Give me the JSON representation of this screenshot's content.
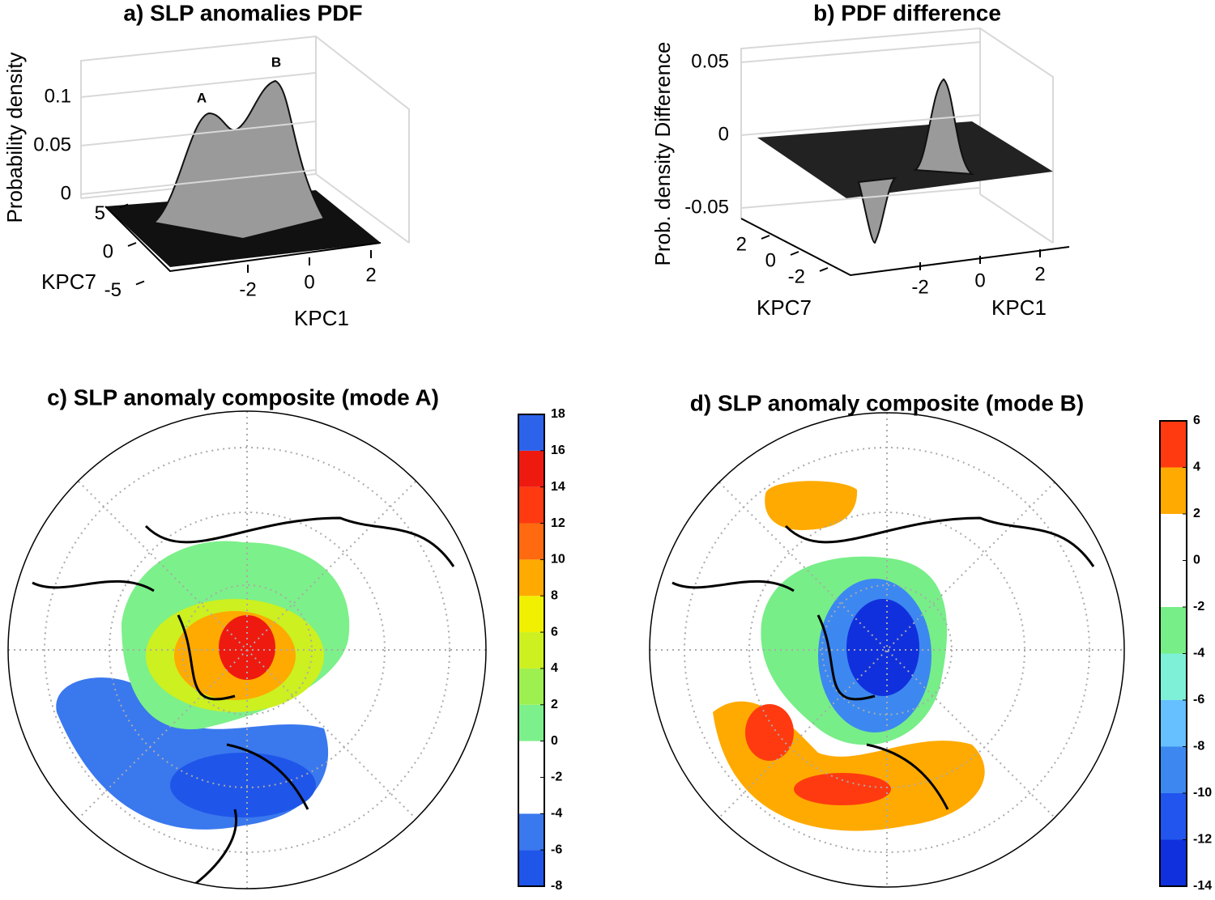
{
  "chart_data": [
    {
      "type": "surface",
      "title": "a) SLP anomalies PDF",
      "zlabel": "Probability density",
      "xlabel": "KPC1",
      "ylabel": "KPC7",
      "zlim": [
        0,
        0.13
      ],
      "zticks": [
        0,
        0.05,
        0.1
      ],
      "xticks": [
        -2,
        0,
        2
      ],
      "yticks": [
        -5,
        0,
        5
      ],
      "annotations": [
        "A",
        "B"
      ],
      "color": "#9a9a9a"
    },
    {
      "type": "surface",
      "title": "b) PDF difference",
      "zlabel": "Prob. density Difference",
      "xlabel": "KPC1",
      "ylabel": "KPC7",
      "zlim": [
        -0.06,
        0.06
      ],
      "zticks": [
        -0.05,
        0,
        0.05
      ],
      "xticks": [
        -2,
        0,
        2
      ],
      "yticks": [
        -2,
        0,
        2
      ],
      "color": "#9a9a9a"
    },
    {
      "type": "contour-map",
      "title": "c) SLP anomaly composite (mode A)",
      "levels": [
        -8,
        -6,
        -4,
        -2,
        0,
        2,
        4,
        6,
        8,
        10,
        12,
        14,
        16,
        18
      ],
      "colors": [
        "#1f55e8",
        "#3a78ee",
        "#ffffff",
        "#ffffff",
        "#7cf08a",
        "#9ef050",
        "#ccf020",
        "#f0f000",
        "#ffaa00",
        "#ff6a10",
        "#ff3a10",
        "#ee1a10",
        "#2d62ea"
      ]
    },
    {
      "type": "contour-map",
      "title": "d) SLP anomaly composite (mode B)",
      "levels": [
        -14,
        -12,
        -10,
        -8,
        -6,
        -4,
        -2,
        0,
        2,
        4,
        6
      ],
      "colors": [
        "#1030dd",
        "#2255ee",
        "#3c88f0",
        "#66c0ff",
        "#7ff0d8",
        "#77ee88",
        "#ffffff",
        "#ffffff",
        "#ffaa00",
        "#ff3a10",
        "#1030dd"
      ]
    }
  ]
}
